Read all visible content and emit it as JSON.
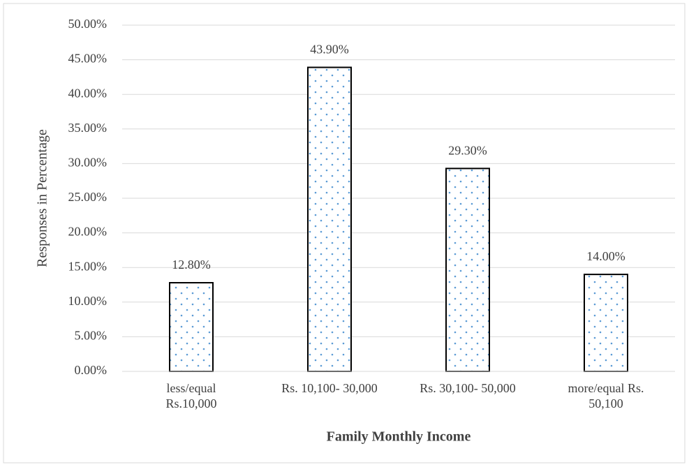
{
  "chart_data": {
    "type": "bar",
    "x_label": "Family Monthly Income",
    "y_label": "Responses in Percentage",
    "categories": [
      "less/equal Rs.10,000",
      "Rs. 10,100- 30,000",
      "Rs. 30,100- 50,000",
      "more/equal Rs. 50,100"
    ],
    "values": [
      12.8,
      43.9,
      29.3,
      14.0
    ],
    "value_labels": [
      "12.80%",
      "43.90%",
      "29.30%",
      "14.00%"
    ],
    "color": "#5b9bd5",
    "ylim": [
      0,
      50
    ],
    "yticks": [
      {
        "value": 0,
        "label": "0.00%"
      },
      {
        "value": 5,
        "label": "5.00%"
      },
      {
        "value": 10,
        "label": "10.00%"
      },
      {
        "value": 15,
        "label": "15.00%"
      },
      {
        "value": 20,
        "label": "20.00%"
      },
      {
        "value": 25,
        "label": "25.00%"
      },
      {
        "value": 30,
        "label": "30.00%"
      },
      {
        "value": 35,
        "label": "35.00%"
      },
      {
        "value": 40,
        "label": "40.00%"
      },
      {
        "value": 45,
        "label": "45.00%"
      },
      {
        "value": 50,
        "label": "50.00%"
      }
    ],
    "grid": true
  }
}
